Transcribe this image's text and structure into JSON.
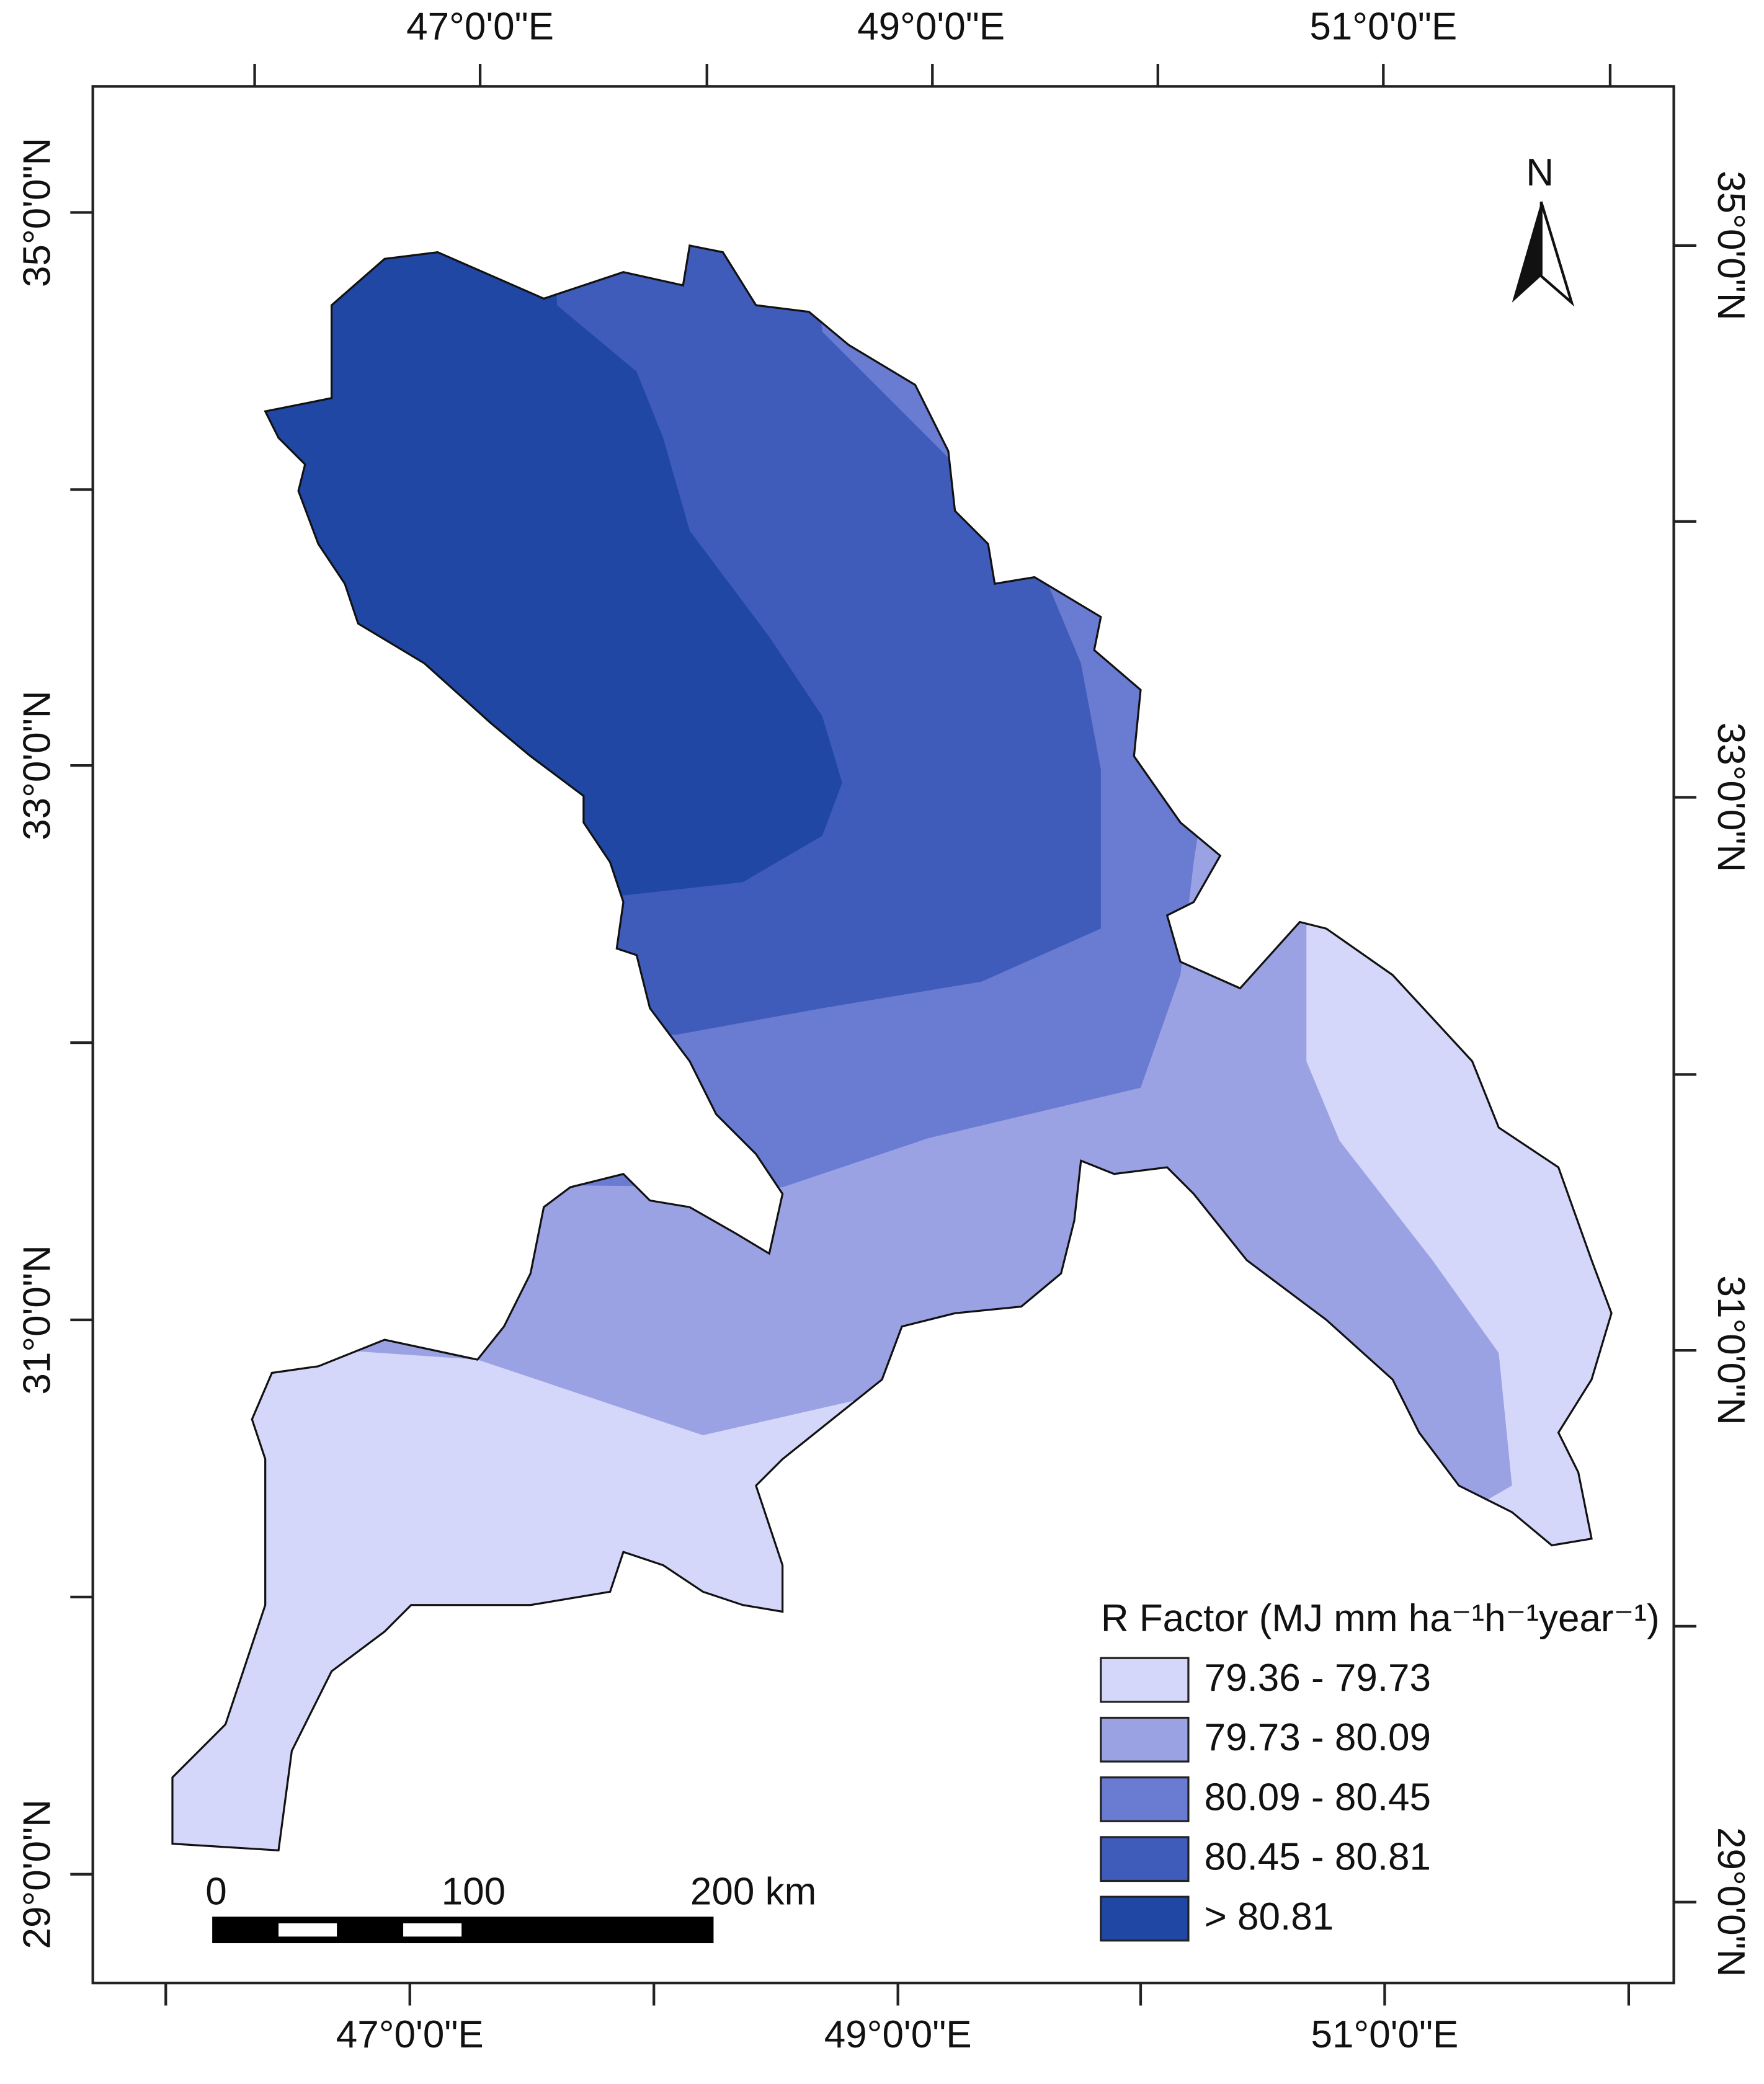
{
  "map": {
    "top_labels": [
      "47°0'0\"E",
      "49°0'0\"E",
      "51°0'0\"E"
    ],
    "bottom_labels": [
      "47°0'0\"E",
      "49°0'0\"E",
      "51°0'0\"E"
    ],
    "left_labels": [
      "35°0'0\"N",
      "33°0'0\"N",
      "31°0'0\"N",
      "29°0'0\"N"
    ],
    "right_labels": [
      "35°0'0\"N",
      "33°0'0\"N",
      "31°0'0\"N",
      "29°0'0\"N"
    ],
    "north": "N",
    "scale_bar": {
      "labels": [
        "0",
        "100",
        "200 km"
      ]
    },
    "legend": {
      "title": "R Factor (MJ mm ha⁻¹h⁻¹year⁻¹)",
      "items": [
        {
          "label": "79.36 - 79.73",
          "color": "#d5d7fa"
        },
        {
          "label": "79.73 - 80.09",
          "color": "#9ba2e4"
        },
        {
          "label": "80.09 - 80.45",
          "color": "#6a7bd2"
        },
        {
          "label": "80.45 - 80.81",
          "color": "#3f5cba"
        },
        {
          "label": "> 80.81",
          "color": "#1f47a3"
        }
      ]
    }
  }
}
